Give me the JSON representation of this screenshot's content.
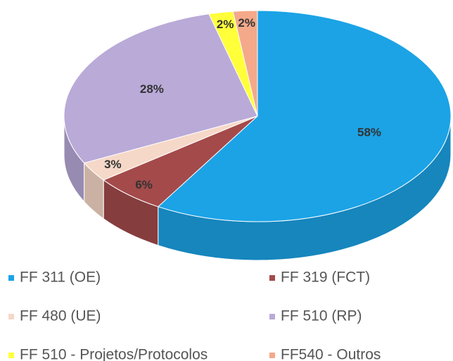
{
  "chart_data": {
    "type": "pie",
    "categories": [
      "FF 311 (OE)",
      "FF 319 (FCT)",
      "FF 480 (UE)",
      "FF 510 (RP)",
      "FF 510 - Projetos/Protocolos",
      "FF540 - Outros"
    ],
    "values": [
      58,
      6,
      3,
      28,
      2,
      2
    ],
    "value_labels": [
      "58%",
      "6%",
      "3%",
      "28%",
      "2%",
      "2%"
    ],
    "colors": [
      "#1ba3e6",
      "#a44a4a",
      "#f6d8c8",
      "#b9aad8",
      "#ffff3a",
      "#f4a98a"
    ],
    "legend": "bottom"
  }
}
